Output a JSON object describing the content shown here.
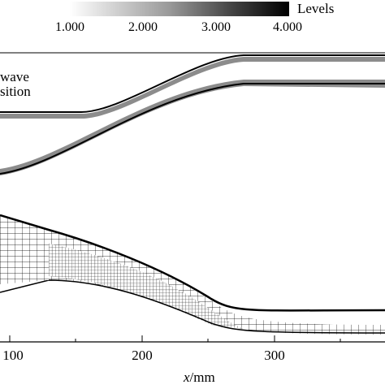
{
  "colorbar": {
    "title": "Levels",
    "ticks": [
      "1.000",
      "2.000",
      "3.000",
      "4.000"
    ],
    "gradient_from": "#ffffff",
    "gradient_to": "#000000"
  },
  "annotation": {
    "line1": "wave",
    "line2": "sition"
  },
  "x_axis": {
    "label_italic": "x",
    "label_unit": "/mm",
    "ticks": [
      "100",
      "200",
      "300"
    ]
  },
  "colors": {
    "wall": "#000000",
    "refinement": "#8c8c8c",
    "frame": "#000000"
  }
}
